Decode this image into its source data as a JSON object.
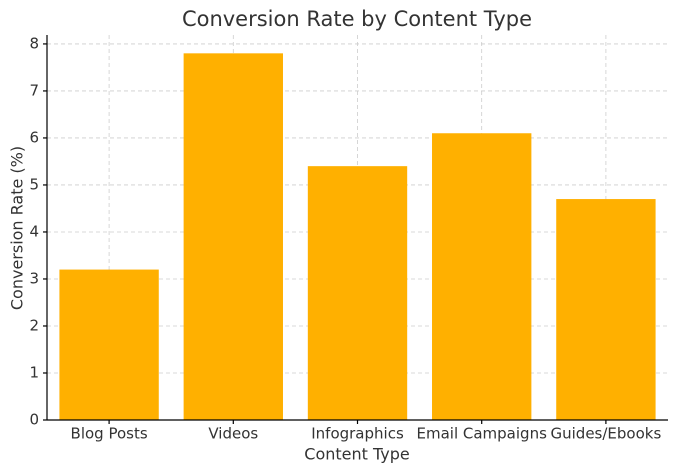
{
  "chart_data": {
    "type": "bar",
    "title": "Conversion Rate by Content Type",
    "x_label": "Content Type",
    "y_label": "Conversion Rate (%)",
    "categories": [
      "Blog Posts",
      "Videos",
      "Infographics",
      "Email Campaigns",
      "Guides/Ebooks"
    ],
    "values": [
      3.2,
      7.8,
      5.4,
      6.1,
      4.7
    ],
    "color": "#ffb000",
    "ylim": [
      0,
      8.19
    ],
    "yticks": [
      0,
      1,
      2,
      3,
      4,
      5,
      6,
      7,
      8
    ],
    "grid": true
  }
}
